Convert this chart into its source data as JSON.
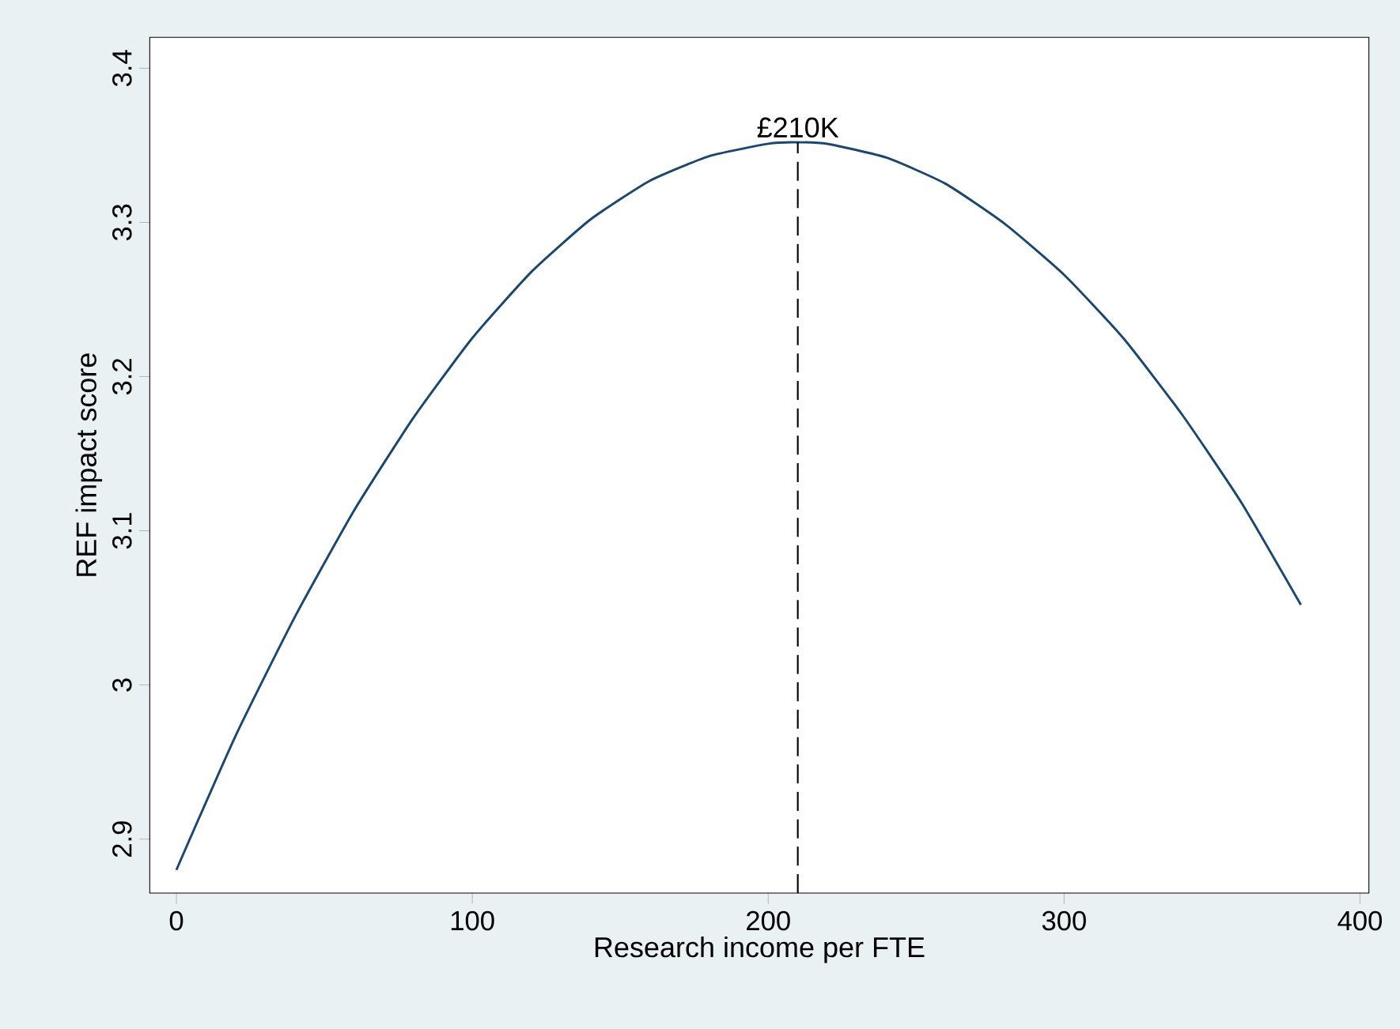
{
  "chart_data": {
    "type": "line",
    "xlabel": "Research income per FTE",
    "ylabel": "REF impact score",
    "x": [
      0,
      20,
      40,
      60,
      80,
      100,
      120,
      140,
      160,
      180,
      200,
      208,
      220,
      240,
      260,
      280,
      300,
      320,
      340,
      360,
      380
    ],
    "series": [
      {
        "color": "#1a476f",
        "values": [
          2.88,
          2.967,
          3.044,
          3.113,
          3.173,
          3.225,
          3.268,
          3.302,
          3.327,
          3.343,
          3.351,
          3.352,
          3.351,
          3.342,
          3.325,
          3.299,
          3.266,
          3.225,
          3.175,
          3.118,
          3.052
        ]
      }
    ],
    "xlim": [
      -9,
      403
    ],
    "ylim": [
      2.865,
      3.42
    ],
    "xticks": [
      0,
      100,
      200,
      300,
      400
    ],
    "yticks": [
      2.9,
      3,
      3.1,
      3.2,
      3.3,
      3.4
    ],
    "ref_lines": [
      {
        "axis": "x",
        "value": 210,
        "label": "£210K",
        "line_style": "dashed",
        "color": "#000000"
      }
    ],
    "marker": "none",
    "line_style": "solid"
  }
}
